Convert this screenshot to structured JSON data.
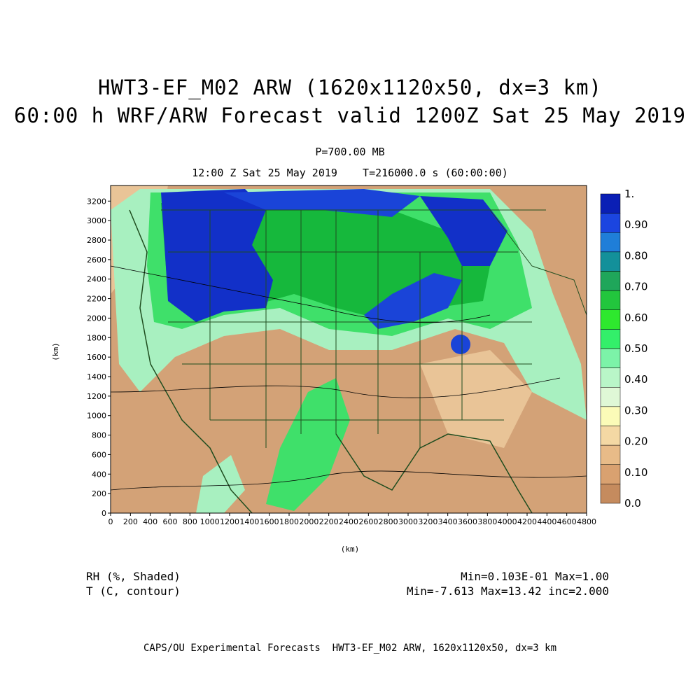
{
  "title_line1": "HWT3-EF_M02 ARW (1620x1120x50, dx=3 km)",
  "title_line2": "60:00 h WRF/ARW Forecast valid 1200Z Sat 25 May 2019",
  "level": "P=700.00 MB",
  "time_info": "12:00 Z Sat 25 May 2019    T=216000.0 s (60:00:00)",
  "x_axis_label": "(km)",
  "y_axis_label": "(km)",
  "x_ticks": [
    "0",
    "200",
    "400",
    "600",
    "800",
    "1000",
    "1200",
    "1400",
    "1600",
    "1800",
    "2000",
    "2200",
    "2400",
    "2600",
    "2800",
    "3000",
    "3200",
    "3400",
    "3600",
    "3800",
    "4000",
    "4200",
    "4400",
    "4600",
    "4800"
  ],
  "y_ticks": [
    "0",
    "200",
    "400",
    "600",
    "800",
    "1000",
    "1200",
    "1400",
    "1600",
    "1800",
    "2000",
    "2200",
    "2400",
    "2600",
    "2800",
    "3000",
    "3200"
  ],
  "colorbar": {
    "labels": [
      "1.",
      "0.90",
      "0.80",
      "0.70",
      "0.60",
      "0.50",
      "0.40",
      "0.30",
      "0.20",
      "0.10",
      "0.0"
    ],
    "colors": [
      "#0a1fb5",
      "#1b45e0",
      "#1f7ed8",
      "#13909a",
      "#1fa65a",
      "#22c63d",
      "#2ee82e",
      "#33ef6a",
      "#7cf3a8",
      "#b9f6c8",
      "#dff8d6",
      "#fbfbb8",
      "#f4d8a4",
      "#e8bb88",
      "#d9a170",
      "#c58b5e"
    ]
  },
  "variables": {
    "shaded": "RH (%, Shaded)",
    "contour": "T (C, contour)"
  },
  "stats": {
    "shaded": "Min=0.103E-01 Max=1.00",
    "contour": "Min=-7.613 Max=13.42 inc=2.000"
  },
  "footer": "CAPS/OU Experimental Forecasts  HWT3-EF_M02 ARW, 1620x1120x50, dx=3 km",
  "map_colors": {
    "dry": "#d3a277",
    "dry_light": "#e9c497",
    "moist_light": "#a8f0c0",
    "moist": "#3fe06a",
    "wet": "#16b83c",
    "saturated": "#1230c8",
    "boundary": "#1f4d1f",
    "contour": "#000000"
  }
}
